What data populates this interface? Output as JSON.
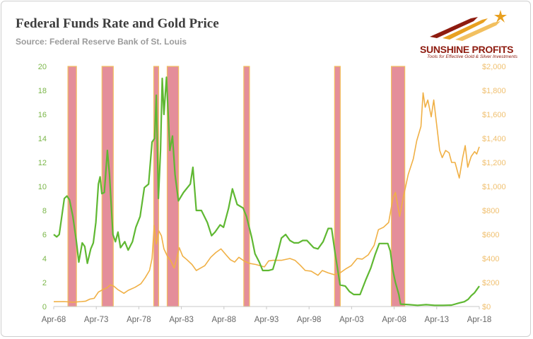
{
  "header": {
    "title": "Federal Funds Rate and Gold Price",
    "source": "Source: Federal Reserve Bank of St. Louis"
  },
  "logo": {
    "name": "SUNSHINE PROFITS",
    "tagline": "Tools for Effective Gold & Silver Investments",
    "colors": {
      "brand": "#8e1b0f",
      "orange": "#e8a020",
      "light": "#f2c060"
    }
  },
  "colors": {
    "fed_funds": "#5fb832",
    "gold": "#f0b045",
    "recession_fill": "#df7a88",
    "recession_edge": "#f2c060",
    "left_axis_text": "#7ab648",
    "right_axis_text": "#f0c070",
    "x_axis_text": "#666666"
  },
  "chart_data": {
    "type": "line",
    "title": "Federal Funds Rate and Gold Price",
    "xlabel": "",
    "x_domain": [
      1968.25,
      2018.25
    ],
    "x_ticks": [
      {
        "label": "Apr-68",
        "x": 1968.25
      },
      {
        "label": "Apr-73",
        "x": 1973.25
      },
      {
        "label": "Apr-78",
        "x": 1978.25
      },
      {
        "label": "Apr-83",
        "x": 1983.25
      },
      {
        "label": "Apr-88",
        "x": 1988.25
      },
      {
        "label": "Apr-93",
        "x": 1993.25
      },
      {
        "label": "Apr-98",
        "x": 1998.25
      },
      {
        "label": "Apr-03",
        "x": 2003.25
      },
      {
        "label": "Apr-08",
        "x": 2008.25
      },
      {
        "label": "Apr-13",
        "x": 2013.25
      },
      {
        "label": "Apr-18",
        "x": 2018.25
      }
    ],
    "y_left": {
      "label": "",
      "lim": [
        0,
        20
      ],
      "ticks": [
        "0",
        "2",
        "4",
        "6",
        "8",
        "10",
        "12",
        "14",
        "16",
        "18",
        "20"
      ]
    },
    "y_right": {
      "label": "",
      "lim": [
        0,
        2000
      ],
      "ticks": [
        "$0",
        "$200",
        "$400",
        "$600",
        "$800",
        "$1,000",
        "$1,200",
        "$1,400",
        "$1,600",
        "$1,800",
        "$2,000"
      ]
    },
    "legend": "none",
    "grid": false,
    "recessions": [
      [
        1969.92,
        1970.92
      ],
      [
        1973.92,
        1975.25
      ],
      [
        1980.0,
        1980.58
      ],
      [
        1981.58,
        1982.92
      ],
      [
        1990.58,
        1991.25
      ],
      [
        2001.25,
        2001.92
      ],
      [
        2007.92,
        2009.5
      ]
    ],
    "series": [
      {
        "name": "Federal Funds Rate",
        "axis": "left",
        "points": [
          [
            1968.25,
            6.0
          ],
          [
            1968.6,
            5.8
          ],
          [
            1968.9,
            6.0
          ],
          [
            1969.3,
            8.0
          ],
          [
            1969.5,
            9.0
          ],
          [
            1969.8,
            9.2
          ],
          [
            1970.1,
            8.9
          ],
          [
            1970.5,
            7.5
          ],
          [
            1970.9,
            5.5
          ],
          [
            1971.2,
            3.7
          ],
          [
            1971.6,
            5.3
          ],
          [
            1971.9,
            5.0
          ],
          [
            1972.2,
            3.6
          ],
          [
            1972.6,
            4.8
          ],
          [
            1972.9,
            5.3
          ],
          [
            1973.2,
            7.0
          ],
          [
            1973.5,
            10.2
          ],
          [
            1973.7,
            10.8
          ],
          [
            1973.9,
            9.4
          ],
          [
            1974.2,
            9.5
          ],
          [
            1974.55,
            13.0
          ],
          [
            1974.8,
            11.0
          ],
          [
            1975.2,
            6.0
          ],
          [
            1975.5,
            5.4
          ],
          [
            1975.8,
            6.2
          ],
          [
            1976.1,
            4.9
          ],
          [
            1976.6,
            5.4
          ],
          [
            1977.0,
            4.7
          ],
          [
            1977.5,
            5.4
          ],
          [
            1977.9,
            6.6
          ],
          [
            1978.4,
            7.5
          ],
          [
            1978.9,
            9.9
          ],
          [
            1979.4,
            10.2
          ],
          [
            1979.8,
            13.7
          ],
          [
            1980.1,
            14.0
          ],
          [
            1980.3,
            17.6
          ],
          [
            1980.55,
            9.0
          ],
          [
            1980.8,
            13.0
          ],
          [
            1981.0,
            19.0
          ],
          [
            1981.2,
            16.0
          ],
          [
            1981.5,
            19.1
          ],
          [
            1981.9,
            13.0
          ],
          [
            1982.2,
            14.2
          ],
          [
            1982.5,
            11.0
          ],
          [
            1982.9,
            8.8
          ],
          [
            1983.5,
            9.5
          ],
          [
            1984.3,
            10.2
          ],
          [
            1984.6,
            11.6
          ],
          [
            1985.0,
            8.0
          ],
          [
            1985.6,
            8.0
          ],
          [
            1986.3,
            7.0
          ],
          [
            1986.8,
            5.9
          ],
          [
            1987.2,
            6.2
          ],
          [
            1987.8,
            6.8
          ],
          [
            1988.2,
            6.6
          ],
          [
            1988.8,
            8.2
          ],
          [
            1989.25,
            9.8
          ],
          [
            1989.8,
            8.5
          ],
          [
            1990.5,
            8.2
          ],
          [
            1990.9,
            7.5
          ],
          [
            1991.5,
            5.8
          ],
          [
            1991.9,
            4.4
          ],
          [
            1992.4,
            3.7
          ],
          [
            1992.8,
            3.0
          ],
          [
            1993.5,
            3.0
          ],
          [
            1994.0,
            3.1
          ],
          [
            1994.5,
            4.3
          ],
          [
            1995.0,
            5.7
          ],
          [
            1995.5,
            6.0
          ],
          [
            1996.0,
            5.5
          ],
          [
            1996.5,
            5.3
          ],
          [
            1997.0,
            5.3
          ],
          [
            1997.5,
            5.5
          ],
          [
            1998.0,
            5.5
          ],
          [
            1998.8,
            4.9
          ],
          [
            1999.3,
            4.8
          ],
          [
            1999.9,
            5.4
          ],
          [
            2000.5,
            6.5
          ],
          [
            2000.9,
            6.5
          ],
          [
            2001.3,
            4.5
          ],
          [
            2001.9,
            1.8
          ],
          [
            2002.5,
            1.7
          ],
          [
            2003.0,
            1.25
          ],
          [
            2003.5,
            1.0
          ],
          [
            2004.25,
            1.0
          ],
          [
            2004.9,
            2.2
          ],
          [
            2005.5,
            3.2
          ],
          [
            2006.0,
            4.3
          ],
          [
            2006.5,
            5.25
          ],
          [
            2007.5,
            5.25
          ],
          [
            2007.8,
            4.6
          ],
          [
            2008.1,
            3.0
          ],
          [
            2008.4,
            2.0
          ],
          [
            2008.8,
            1.0
          ],
          [
            2009.0,
            0.2
          ],
          [
            2010.0,
            0.15
          ],
          [
            2011.0,
            0.1
          ],
          [
            2012.0,
            0.15
          ],
          [
            2013.0,
            0.1
          ],
          [
            2014.0,
            0.1
          ],
          [
            2015.0,
            0.12
          ],
          [
            2015.9,
            0.3
          ],
          [
            2016.5,
            0.4
          ],
          [
            2016.95,
            0.6
          ],
          [
            2017.3,
            0.9
          ],
          [
            2017.7,
            1.15
          ],
          [
            2017.95,
            1.4
          ],
          [
            2018.25,
            1.7
          ]
        ]
      },
      {
        "name": "Gold Price",
        "axis": "right",
        "points": [
          [
            1968.25,
            40
          ],
          [
            1969.5,
            41
          ],
          [
            1970.5,
            36
          ],
          [
            1971.5,
            41
          ],
          [
            1972.0,
            45
          ],
          [
            1972.5,
            62
          ],
          [
            1973.0,
            68
          ],
          [
            1973.5,
            120
          ],
          [
            1974.0,
            140
          ],
          [
            1974.5,
            155
          ],
          [
            1974.9,
            180
          ],
          [
            1975.3,
            170
          ],
          [
            1975.8,
            140
          ],
          [
            1976.5,
            110
          ],
          [
            1977.0,
            135
          ],
          [
            1977.8,
            160
          ],
          [
            1978.5,
            190
          ],
          [
            1979.0,
            240
          ],
          [
            1979.5,
            300
          ],
          [
            1979.8,
            400
          ],
          [
            1980.05,
            675
          ],
          [
            1980.3,
            520
          ],
          [
            1980.6,
            630
          ],
          [
            1980.9,
            590
          ],
          [
            1981.2,
            480
          ],
          [
            1981.6,
            420
          ],
          [
            1982.0,
            380
          ],
          [
            1982.4,
            320
          ],
          [
            1982.7,
            400
          ],
          [
            1983.0,
            490
          ],
          [
            1983.4,
            420
          ],
          [
            1983.9,
            390
          ],
          [
            1984.5,
            350
          ],
          [
            1985.0,
            300
          ],
          [
            1985.5,
            320
          ],
          [
            1986.0,
            340
          ],
          [
            1986.7,
            410
          ],
          [
            1987.3,
            450
          ],
          [
            1987.9,
            480
          ],
          [
            1988.5,
            430
          ],
          [
            1989.0,
            390
          ],
          [
            1989.5,
            370
          ],
          [
            1990.0,
            410
          ],
          [
            1990.6,
            380
          ],
          [
            1991.2,
            360
          ],
          [
            1992.0,
            350
          ],
          [
            1992.5,
            340
          ],
          [
            1993.0,
            330
          ],
          [
            1993.5,
            380
          ],
          [
            1994.0,
            385
          ],
          [
            1995.0,
            385
          ],
          [
            1996.0,
            400
          ],
          [
            1996.6,
            385
          ],
          [
            1997.2,
            345
          ],
          [
            1997.8,
            300
          ],
          [
            1998.5,
            295
          ],
          [
            1999.3,
            260
          ],
          [
            1999.8,
            300
          ],
          [
            2000.5,
            280
          ],
          [
            2001.2,
            265
          ],
          [
            2001.9,
            280
          ],
          [
            2002.6,
            315
          ],
          [
            2003.2,
            340
          ],
          [
            2003.9,
            400
          ],
          [
            2004.5,
            395
          ],
          [
            2005.2,
            430
          ],
          [
            2005.9,
            510
          ],
          [
            2006.4,
            640
          ],
          [
            2007.0,
            660
          ],
          [
            2007.6,
            700
          ],
          [
            2008.1,
            900
          ],
          [
            2008.4,
            950
          ],
          [
            2008.9,
            750
          ],
          [
            2009.3,
            900
          ],
          [
            2009.9,
            1100
          ],
          [
            2010.5,
            1230
          ],
          [
            2010.9,
            1380
          ],
          [
            2011.4,
            1500
          ],
          [
            2011.65,
            1780
          ],
          [
            2011.9,
            1660
          ],
          [
            2012.2,
            1720
          ],
          [
            2012.6,
            1580
          ],
          [
            2012.9,
            1720
          ],
          [
            2013.3,
            1480
          ],
          [
            2013.6,
            1300
          ],
          [
            2013.9,
            1240
          ],
          [
            2014.3,
            1300
          ],
          [
            2014.7,
            1280
          ],
          [
            2015.0,
            1200
          ],
          [
            2015.4,
            1200
          ],
          [
            2015.9,
            1070
          ],
          [
            2016.3,
            1240
          ],
          [
            2016.6,
            1340
          ],
          [
            2016.9,
            1160
          ],
          [
            2017.3,
            1250
          ],
          [
            2017.7,
            1290
          ],
          [
            2017.95,
            1270
          ],
          [
            2018.25,
            1330
          ]
        ]
      }
    ]
  }
}
